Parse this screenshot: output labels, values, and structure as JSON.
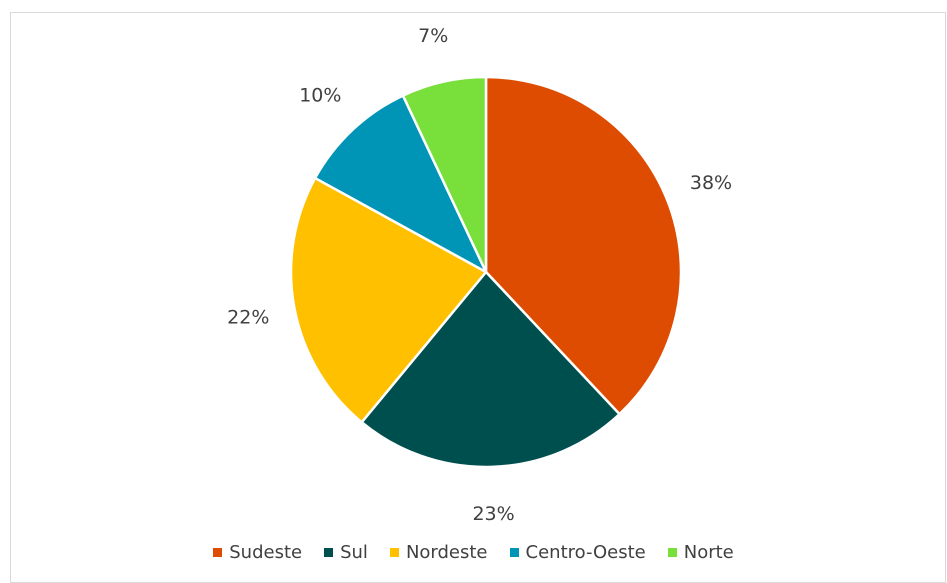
{
  "chart_data": {
    "type": "pie",
    "categories": [
      "Sudeste",
      "Sul",
      "Nordeste",
      "Centro-Oeste",
      "Norte"
    ],
    "values": [
      38,
      23,
      22,
      10,
      7
    ],
    "data_labels": [
      "38%",
      "23%",
      "22%",
      "10%",
      "7%"
    ],
    "colors": [
      "#dd4c00",
      "#004f4f",
      "#ffc000",
      "#0095b6",
      "#78df3b"
    ],
    "start_angle_deg": 0,
    "direction": "clockwise",
    "legend_position": "bottom",
    "title": ""
  }
}
